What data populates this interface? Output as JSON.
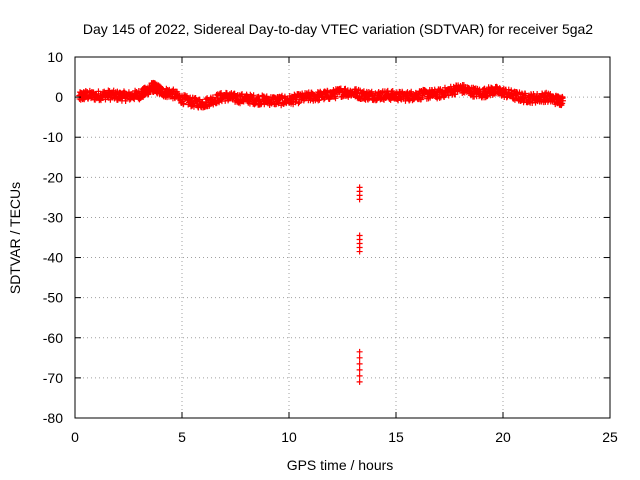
{
  "chart_data": {
    "type": "scatter",
    "title": "Day 145 of 2022, Sidereal Day-to-day VTEC variation (SDTVAR) for receiver 5ga2",
    "xlabel": "GPS time / hours",
    "ylabel": "SDTVAR / TECUs",
    "xlim": [
      0,
      25
    ],
    "ylim": [
      -80,
      10
    ],
    "xticks": [
      0,
      5,
      10,
      15,
      20,
      25
    ],
    "yticks": [
      10,
      0,
      -10,
      -20,
      -30,
      -40,
      -50,
      -60,
      -70,
      -80
    ],
    "grid": true,
    "marker": "plus",
    "color": "#ff0000",
    "trend": [
      [
        0.2,
        0.0
      ],
      [
        0.5,
        0.5
      ],
      [
        1.0,
        0.3
      ],
      [
        1.5,
        0.6
      ],
      [
        2.0,
        0.3
      ],
      [
        2.5,
        0.2
      ],
      [
        3.0,
        0.6
      ],
      [
        3.3,
        1.3
      ],
      [
        3.6,
        2.5
      ],
      [
        3.8,
        2.2
      ],
      [
        4.1,
        1.2
      ],
      [
        4.5,
        1.0
      ],
      [
        5.0,
        -0.5
      ],
      [
        5.5,
        -1.3
      ],
      [
        6.0,
        -1.6
      ],
      [
        6.5,
        -0.6
      ],
      [
        7.0,
        0.2
      ],
      [
        7.5,
        -0.3
      ],
      [
        8.0,
        -0.4
      ],
      [
        8.5,
        -0.7
      ],
      [
        9.0,
        -0.8
      ],
      [
        9.5,
        -0.9
      ],
      [
        10.0,
        -0.8
      ],
      [
        10.5,
        -0.3
      ],
      [
        11.0,
        0.1
      ],
      [
        11.5,
        0.3
      ],
      [
        12.0,
        0.6
      ],
      [
        12.5,
        1.3
      ],
      [
        13.0,
        1.1
      ],
      [
        13.5,
        0.5
      ],
      [
        14.0,
        0.4
      ],
      [
        14.5,
        0.5
      ],
      [
        15.0,
        0.3
      ],
      [
        15.5,
        0.2
      ],
      [
        16.0,
        0.5
      ],
      [
        16.5,
        0.7
      ],
      [
        17.0,
        0.8
      ],
      [
        17.5,
        1.5
      ],
      [
        18.0,
        2.2
      ],
      [
        18.5,
        1.4
      ],
      [
        19.0,
        0.9
      ],
      [
        19.5,
        1.6
      ],
      [
        20.0,
        1.2
      ],
      [
        20.5,
        0.4
      ],
      [
        21.0,
        -0.2
      ],
      [
        21.5,
        -0.3
      ],
      [
        22.0,
        0.0
      ],
      [
        22.5,
        -0.7
      ],
      [
        22.8,
        -0.9
      ]
    ],
    "band_halfwidth": 1.2,
    "outliers": [
      {
        "x": 13.3,
        "y": -22.5
      },
      {
        "x": 13.3,
        "y": -23.5
      },
      {
        "x": 13.3,
        "y": -24.5
      },
      {
        "x": 13.3,
        "y": -25.5
      },
      {
        "x": 13.3,
        "y": -34.5
      },
      {
        "x": 13.3,
        "y": -35.5
      },
      {
        "x": 13.3,
        "y": -36.5
      },
      {
        "x": 13.3,
        "y": -37.5
      },
      {
        "x": 13.3,
        "y": -38.5
      },
      {
        "x": 13.3,
        "y": -63.5
      },
      {
        "x": 13.3,
        "y": -65.0
      },
      {
        "x": 13.3,
        "y": -66.5
      },
      {
        "x": 13.3,
        "y": -68.0
      },
      {
        "x": 13.3,
        "y": -69.5
      },
      {
        "x": 13.3,
        "y": -71.0
      }
    ]
  }
}
